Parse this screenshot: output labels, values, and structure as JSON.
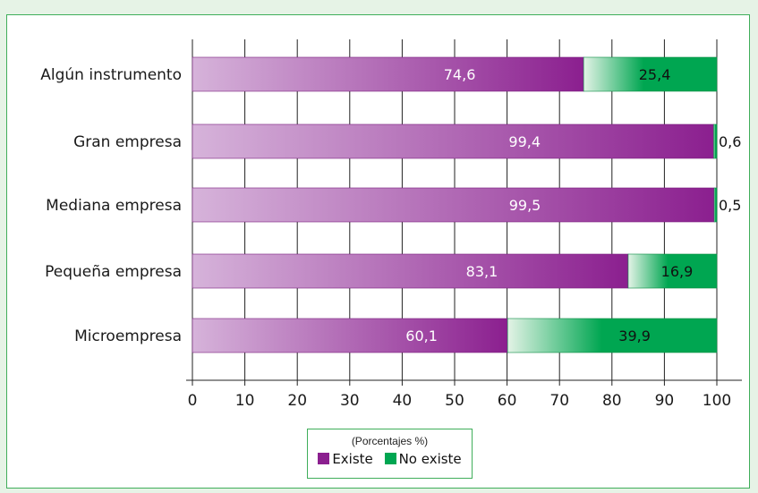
{
  "chart_data": {
    "type": "bar",
    "orientation": "horizontal",
    "stacked": true,
    "categories": [
      "Algún instrumento",
      "Gran empresa",
      "Mediana empresa",
      "Pequeña empresa",
      "Microempresa"
    ],
    "series": [
      {
        "name": "Existe",
        "values": [
          74.6,
          99.4,
          99.5,
          83.1,
          60.1
        ],
        "labels": [
          "74,6",
          "99,4",
          "99,5",
          "83,1",
          "60,1"
        ],
        "color": "#8b1f8f"
      },
      {
        "name": "No existe",
        "values": [
          25.4,
          0.6,
          0.5,
          16.9,
          39.9
        ],
        "labels": [
          "25,4",
          "0,6",
          "0,5",
          "16,9",
          "39,9"
        ],
        "color": "#00a651"
      }
    ],
    "xlim": [
      0,
      100
    ],
    "xticks": [
      "0",
      "10",
      "20",
      "30",
      "40",
      "50",
      "60",
      "70",
      "80",
      "90",
      "100"
    ],
    "grid": true,
    "legend_title": "(Porcentajes %)",
    "legend_position": "bottom-center"
  }
}
